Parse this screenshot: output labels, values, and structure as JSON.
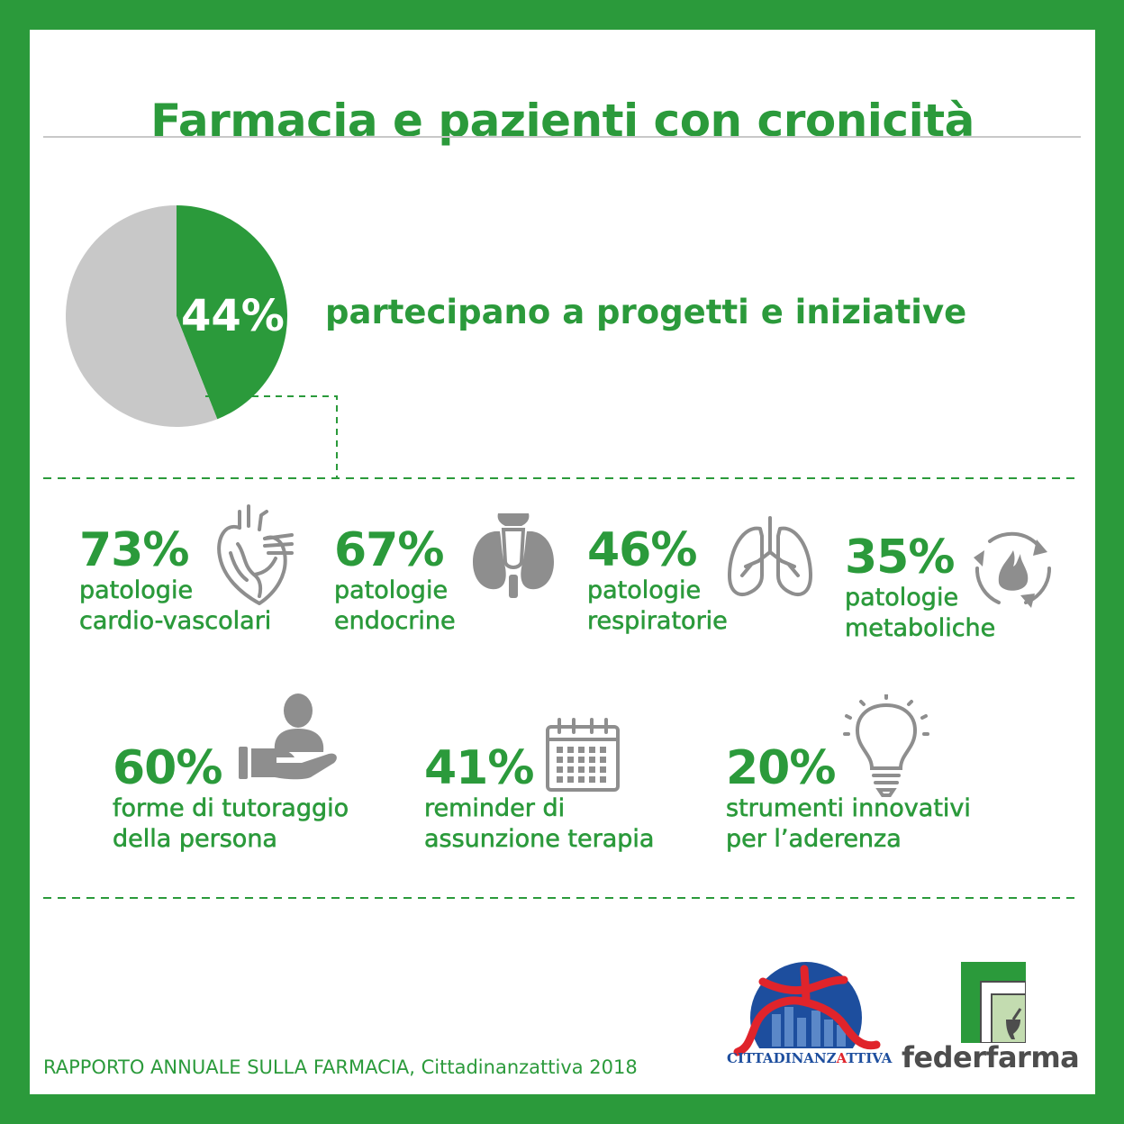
{
  "title": "Farmacia e pazienti con cronicità",
  "colors": {
    "green": "#2b9a3b",
    "grey": "#c8c8c8",
    "icon_grey": "#8e8e8e",
    "blue": "#1d4e9e",
    "red": "#e0242b"
  },
  "headline": {
    "percent": "44%",
    "text": "partecipano a progetti e iniziative"
  },
  "chart_data": {
    "type": "pie",
    "title": "",
    "slices": [
      {
        "label": "partecipano a progetti e iniziative",
        "value": 44,
        "color": "#2b9a3b"
      },
      {
        "label": "",
        "value": 56,
        "color": "#c8c8c8"
      }
    ]
  },
  "stats": [
    {
      "percent": "73%",
      "line1": "patologie",
      "line2": "cardio-vascolari",
      "icon": "heart-icon"
    },
    {
      "percent": "67%",
      "line1": "patologie",
      "line2": "endocrine",
      "icon": "thyroid-icon"
    },
    {
      "percent": "46%",
      "line1": "patologie",
      "line2": "respiratorie",
      "icon": "lungs-icon"
    },
    {
      "percent": "35%",
      "line1": "patologie",
      "line2": "metaboliche",
      "icon": "metabolism-icon"
    },
    {
      "percent": "60%",
      "line1": "forme di tutoraggio",
      "line2": "della persona",
      "icon": "hand-person-icon"
    },
    {
      "percent": "41%",
      "line1": "reminder di",
      "line2": "assunzione terapia",
      "icon": "calendar-icon"
    },
    {
      "percent": "20%",
      "line1": "strumenti innovativi",
      "line2": "per l’aderenza",
      "icon": "lightbulb-icon"
    }
  ],
  "source": "RAPPORTO ANNUALE SULLA FARMACIA, Cittadinanzattiva 2018",
  "logos": {
    "cittadinanzattiva": "CITTADINANZATTIVA",
    "federfarma": "federfarma"
  }
}
